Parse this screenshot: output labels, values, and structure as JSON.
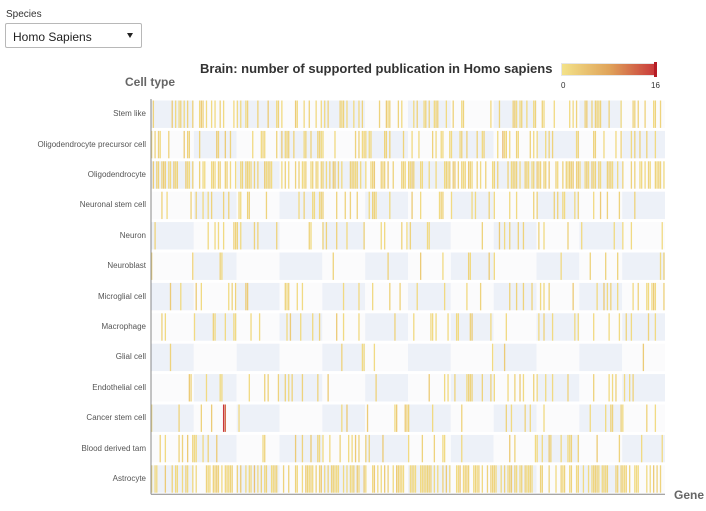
{
  "species": {
    "label": "Species",
    "selected": "Homo Sapiens",
    "options": [
      "Homo Sapiens"
    ]
  },
  "colors": {
    "scale_low": "#f3e289",
    "scale_mid": "#e0a45a",
    "scale_high": "#c8363a",
    "empty_even": "#edf1f8",
    "empty_odd": "#fbfbfc",
    "axis": "#888888"
  },
  "chart_data": {
    "type": "heatmap",
    "title": "Brain: number of supported publication in Homo sapiens",
    "xlabel": "Gene",
    "ylabel": "Cell type",
    "legend": {
      "min_label": "0",
      "max_label": "16",
      "min": 0,
      "max": 16,
      "placement": "top-right"
    },
    "rows": [
      "Stem like",
      "Oligodendrocyte precursor cell",
      "Oligodendrocyte",
      "Neuronal stem cell",
      "Neuron",
      "Neuroblast",
      "Microglial cell",
      "Macrophage",
      "Glial cell",
      "Endothelial cell",
      "Cancer stem cell",
      "Blood derived tam",
      "Astrocyte"
    ],
    "gene_count": 300,
    "nonzero_fraction": [
      0.3,
      0.3,
      0.5,
      0.16,
      0.15,
      0.06,
      0.15,
      0.13,
      0.02,
      0.13,
      0.09,
      0.16,
      0.55
    ],
    "cells": [
      {
        "row": "Cancer stem cell",
        "gene_index": 42,
        "value": 16
      },
      {
        "row": "Cancer stem cell",
        "gene_index": 43,
        "value": 12
      },
      {
        "row": "Oligodendrocyte precursor cell",
        "gene_index": 205,
        "value": 5
      },
      {
        "row": "Astrocyte",
        "gene_index": 60,
        "value": 4
      },
      {
        "row": "Astrocyte",
        "gene_index": 180,
        "value": 4
      }
    ]
  }
}
